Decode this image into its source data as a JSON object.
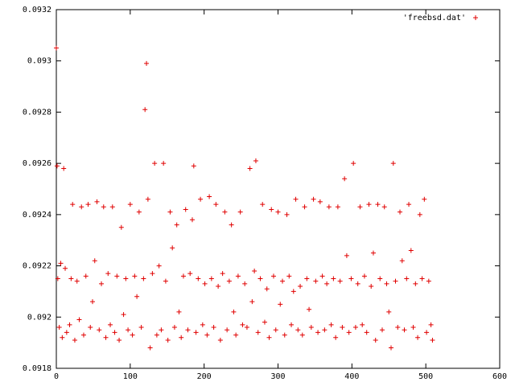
{
  "chart_data": {
    "type": "scatter",
    "xlim": [
      0,
      600
    ],
    "xticks": [
      0,
      100,
      200,
      300,
      400,
      500,
      600
    ],
    "ylim": [
      0.0918,
      0.0932
    ],
    "yticks": [
      0.0918,
      0.092,
      0.0922,
      0.0924,
      0.0926,
      0.0928,
      0.093,
      0.0932
    ],
    "legend": "upper right",
    "grid": false,
    "series": [
      {
        "name": "'freebsd.dat'",
        "color": "#e00000",
        "x": [
          0,
          1,
          2,
          4,
          6,
          8,
          10,
          12,
          14,
          18,
          20,
          22,
          25,
          28,
          31,
          34,
          37,
          40,
          43,
          46,
          49,
          52,
          55,
          58,
          61,
          64,
          67,
          70,
          73,
          76,
          79,
          82,
          85,
          88,
          91,
          94,
          97,
          100,
          103,
          106,
          109,
          112,
          115,
          118,
          120,
          122,
          124,
          127,
          130,
          133,
          136,
          139,
          142,
          145,
          148,
          151,
          154,
          157,
          160,
          163,
          166,
          169,
          172,
          175,
          178,
          181,
          184,
          186,
          189,
          192,
          195,
          198,
          201,
          204,
          207,
          210,
          213,
          216,
          219,
          222,
          225,
          228,
          231,
          234,
          237,
          240,
          243,
          246,
          249,
          252,
          255,
          258,
          262,
          265,
          268,
          270,
          273,
          276,
          279,
          282,
          285,
          288,
          291,
          294,
          297,
          300,
          303,
          306,
          309,
          312,
          315,
          318,
          321,
          324,
          327,
          330,
          333,
          336,
          339,
          342,
          345,
          348,
          351,
          354,
          357,
          360,
          363,
          366,
          369,
          372,
          375,
          378,
          381,
          384,
          387,
          390,
          393,
          396,
          399,
          402,
          405,
          408,
          411,
          414,
          417,
          420,
          423,
          426,
          429,
          432,
          435,
          438,
          441,
          444,
          447,
          450,
          453,
          456,
          459,
          462,
          465,
          468,
          471,
          474,
          477,
          480,
          483,
          486,
          489,
          492,
          495,
          498,
          501,
          504,
          507,
          509
        ],
        "values": [
          0.09305,
          0.09259,
          0.09215,
          0.09196,
          0.09221,
          0.09192,
          0.09258,
          0.09219,
          0.09194,
          0.09197,
          0.09215,
          0.09244,
          0.09191,
          0.09214,
          0.09199,
          0.09243,
          0.09193,
          0.09216,
          0.09244,
          0.09196,
          0.09206,
          0.09222,
          0.09245,
          0.09195,
          0.09213,
          0.09243,
          0.09192,
          0.09217,
          0.09197,
          0.09243,
          0.09194,
          0.09216,
          0.09191,
          0.09235,
          0.09201,
          0.09215,
          0.09195,
          0.09244,
          0.09193,
          0.09216,
          0.09208,
          0.09241,
          0.09196,
          0.09215,
          0.09281,
          0.09299,
          0.09246,
          0.09188,
          0.09217,
          0.0926,
          0.09193,
          0.0922,
          0.09195,
          0.0926,
          0.09214,
          0.09191,
          0.09241,
          0.09227,
          0.09196,
          0.09236,
          0.09202,
          0.09192,
          0.09216,
          0.09242,
          0.09195,
          0.09217,
          0.09238,
          0.09259,
          0.09194,
          0.09215,
          0.09246,
          0.09197,
          0.09213,
          0.09193,
          0.09247,
          0.09215,
          0.09196,
          0.09244,
          0.09212,
          0.09191,
          0.09217,
          0.09241,
          0.09195,
          0.09214,
          0.09236,
          0.09202,
          0.09193,
          0.09216,
          0.09241,
          0.09197,
          0.09213,
          0.09196,
          0.09258,
          0.09206,
          0.09218,
          0.09261,
          0.09194,
          0.09215,
          0.09244,
          0.09198,
          0.09211,
          0.09192,
          0.09242,
          0.09216,
          0.09195,
          0.09241,
          0.09205,
          0.09214,
          0.09193,
          0.0924,
          0.09216,
          0.09197,
          0.0921,
          0.09246,
          0.09195,
          0.09212,
          0.09193,
          0.09243,
          0.09215,
          0.09203,
          0.09196,
          0.09246,
          0.09214,
          0.09194,
          0.09245,
          0.09216,
          0.09195,
          0.09213,
          0.09243,
          0.09197,
          0.09215,
          0.09192,
          0.09243,
          0.09214,
          0.09196,
          0.09254,
          0.09224,
          0.09194,
          0.09215,
          0.0926,
          0.09196,
          0.09213,
          0.09243,
          0.09197,
          0.09216,
          0.09194,
          0.09244,
          0.09212,
          0.09225,
          0.09191,
          0.09244,
          0.09215,
          0.09195,
          0.09243,
          0.09213,
          0.09202,
          0.09188,
          0.0926,
          0.09214,
          0.09196,
          0.09241,
          0.09222,
          0.09195,
          0.09215,
          0.09244,
          0.09226,
          0.09196,
          0.09213,
          0.09192,
          0.0924,
          0.09215,
          0.09246,
          0.09194,
          0.09214,
          0.09197,
          0.09191
        ]
      }
    ]
  }
}
